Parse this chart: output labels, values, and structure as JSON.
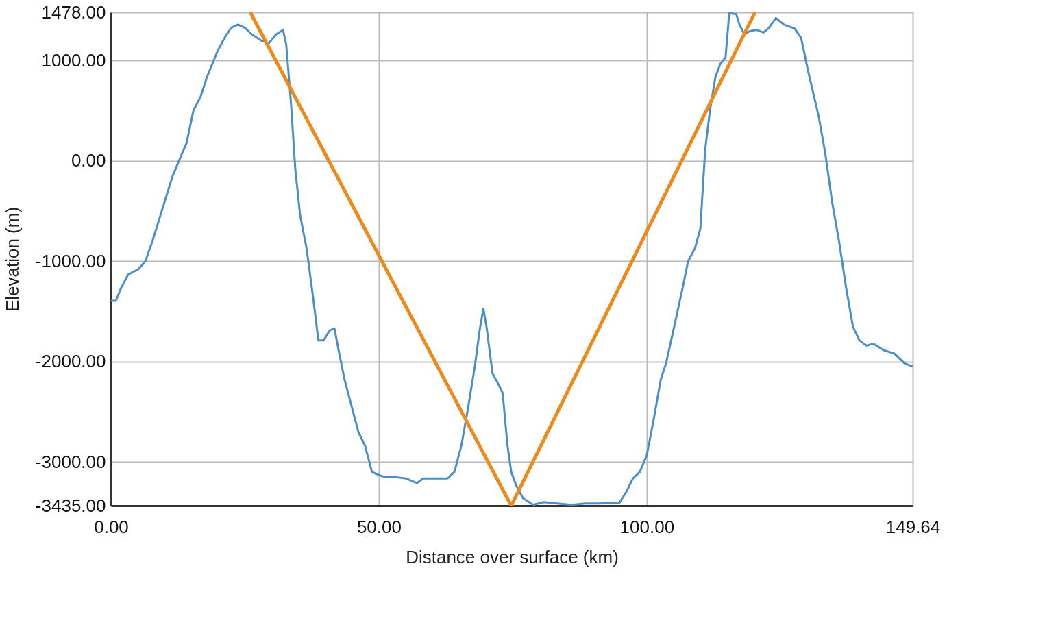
{
  "chart_data": {
    "type": "line",
    "xlabel": "Distance over surface (km)",
    "ylabel": "Elevation (m)",
    "xlim": [
      0,
      149.64
    ],
    "ylim": [
      -3435,
      1478
    ],
    "xticks": [
      {
        "value": 0,
        "label": "0.00"
      },
      {
        "value": 50,
        "label": "50.00"
      },
      {
        "value": 100,
        "label": "100.00"
      },
      {
        "value": 149.64,
        "label": "149.64"
      }
    ],
    "yticks": [
      {
        "value": -3435,
        "label": "-3435.00"
      },
      {
        "value": -3000,
        "label": "-3000.00"
      },
      {
        "value": -2000,
        "label": "-2000.00"
      },
      {
        "value": -1000,
        "label": "-1000.00"
      },
      {
        "value": 0,
        "label": "0.00"
      },
      {
        "value": 1000,
        "label": "1000.00"
      },
      {
        "value": 1478,
        "label": "1478.00"
      }
    ],
    "grid": true,
    "marker": "none",
    "line_style": "solid",
    "series": [
      {
        "color": "#4a8fc9",
        "x": [
          0,
          0.9,
          1.9,
          3.2,
          5.1,
          6.4,
          7.7,
          9.6,
          11.5,
          12.8,
          14.1,
          15.4,
          16.7,
          17.9,
          19.9,
          21.2,
          22.4,
          23.7,
          25.0,
          26.3,
          28.2,
          29.5,
          30.8,
          32.1,
          32.7,
          33.6,
          34.4,
          35.3,
          36.5,
          37.8,
          38.7,
          39.7,
          40.8,
          41.7,
          42.6,
          43.6,
          44.9,
          46.2,
          47.4,
          48.7,
          50.0,
          51.3,
          53.2,
          55.1,
          57.1,
          58.3,
          60.3,
          62.8,
          64.1,
          65.4,
          66.7,
          67.9,
          68.8,
          69.5,
          70.1,
          71.2,
          72.2,
          73.1,
          74.0,
          74.7,
          75.6,
          76.9,
          78.8,
          80.8,
          83.3,
          85.9,
          88.5,
          91.0,
          94.9,
          96.2,
          97.4,
          98.7,
          100.0,
          101.3,
          102.6,
          103.6,
          105.1,
          106.7,
          107.7,
          109.0,
          110.0,
          110.9,
          111.8,
          112.8,
          113.7,
          114.7,
          115.4,
          116.7,
          117.3,
          118.2,
          119.2,
          120.5,
          121.8,
          122.8,
          124.1,
          125.6,
          127.6,
          128.8,
          130.1,
          132.1,
          133.3,
          134.6,
          135.9,
          137.2,
          138.5,
          139.7,
          141.0,
          142.3,
          144.2,
          146.2,
          148.1,
          149.64
        ],
        "values": [
          -1395,
          -1395,
          -1264,
          -1133,
          -1081,
          -1002,
          -806,
          -478,
          -151,
          13,
          177,
          504,
          635,
          832,
          1094,
          1225,
          1323,
          1356,
          1323,
          1258,
          1192,
          1172,
          1258,
          1303,
          1159,
          570,
          -85,
          -544,
          -871,
          -1395,
          -1788,
          -1788,
          -1690,
          -1670,
          -1919,
          -2181,
          -2443,
          -2705,
          -2836,
          -3098,
          -3131,
          -3151,
          -3151,
          -3164,
          -3210,
          -3164,
          -3164,
          -3164,
          -3098,
          -2836,
          -2443,
          -2050,
          -1690,
          -1474,
          -1657,
          -2116,
          -2214,
          -2312,
          -2836,
          -3098,
          -3229,
          -3360,
          -3426,
          -3399,
          -3413,
          -3426,
          -3413,
          -3413,
          -3406,
          -3295,
          -3164,
          -3098,
          -2934,
          -2574,
          -2181,
          -2017,
          -1657,
          -1264,
          -1002,
          -871,
          -675,
          111,
          504,
          832,
          963,
          1028,
          1470,
          1460,
          1356,
          1258,
          1290,
          1303,
          1277,
          1323,
          1421,
          1356,
          1317,
          1225,
          897,
          439,
          79,
          -413,
          -806,
          -1264,
          -1657,
          -1788,
          -1841,
          -1821,
          -1886,
          -1919,
          -2017,
          -2050
        ]
      },
      {
        "color": "#ec8a1c",
        "x": [
          26.0,
          74.7,
          120.2
        ],
        "values": [
          1478,
          -3435,
          1478
        ]
      }
    ]
  }
}
